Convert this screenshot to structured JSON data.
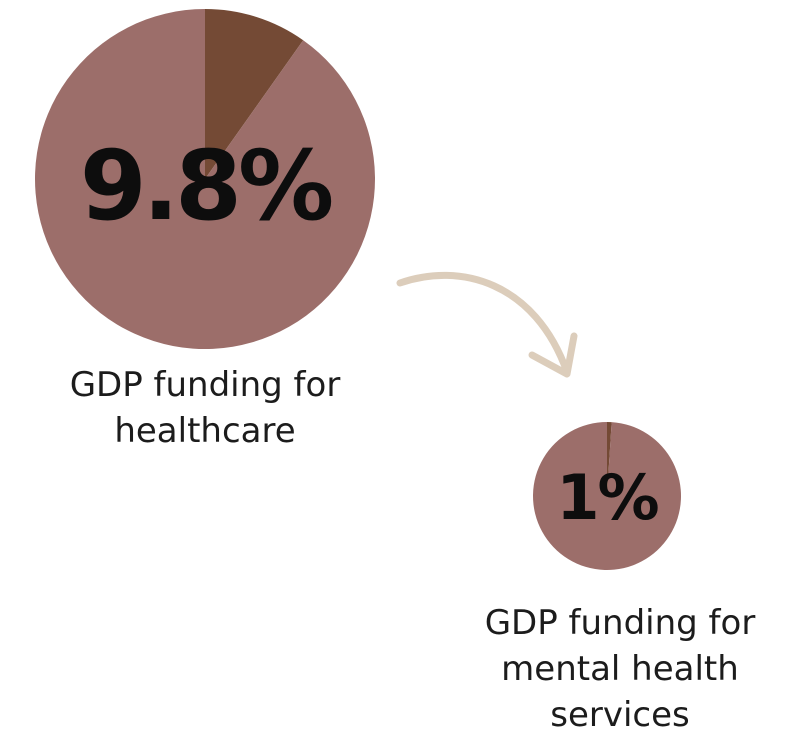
{
  "chart_data": [
    {
      "type": "pie",
      "center_label": "9.8%",
      "caption": "GDP funding for healthcare",
      "slices": [
        {
          "value": 9.8,
          "color": "#744a35"
        },
        {
          "value": 90.2,
          "color": "#9c6e6a"
        }
      ]
    },
    {
      "type": "pie",
      "center_label": "1%",
      "caption": "GDP funding for mental health services",
      "slices": [
        {
          "value": 1,
          "color": "#744a35"
        },
        {
          "value": 99,
          "color": "#9c6e6a"
        }
      ]
    }
  ],
  "arrow": {
    "color": "#dccdbb"
  }
}
